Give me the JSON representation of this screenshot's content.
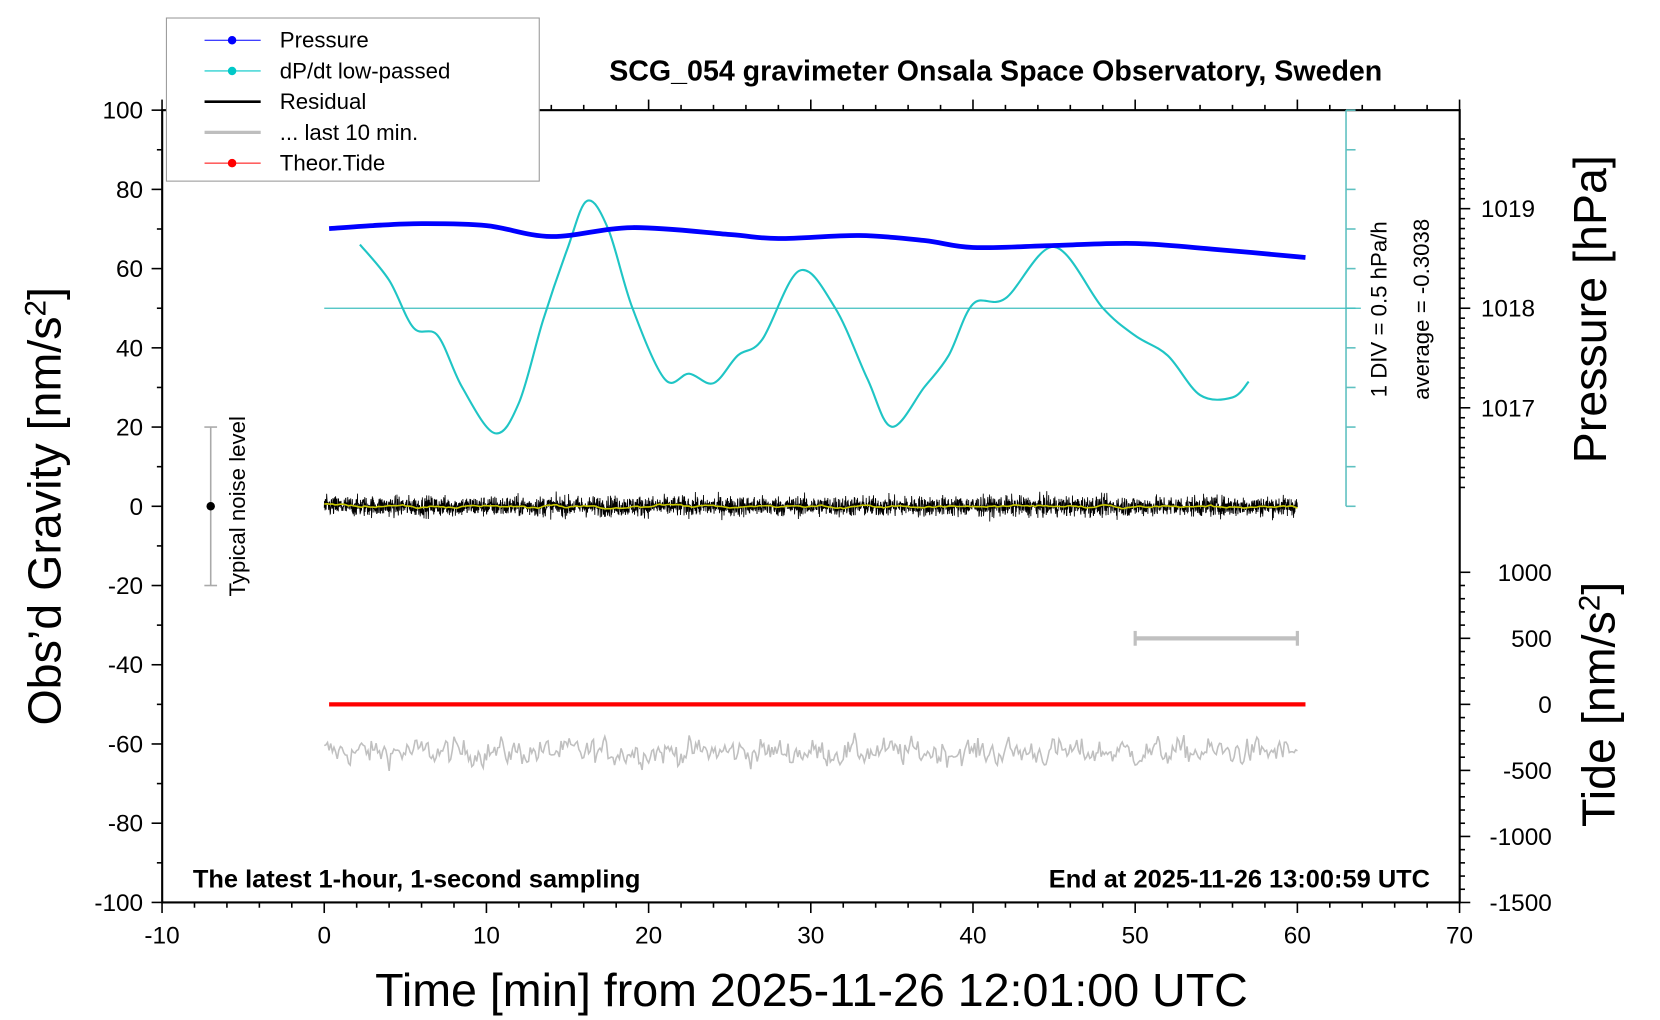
{
  "chart_data": {
    "type": "line",
    "title": "SCG_054 gravimeter Onsala Space Observatory, Sweden",
    "xlabel": "Time [min] from 2025-11-26 12:01:00 UTC",
    "ylabel": "Obs'd Gravity [nm/s²]",
    "ylabel_right_top": "Pressure [hPa]",
    "ylabel_right_bottom": "Tide [nm/s²]",
    "xlim": [
      -10,
      70
    ],
    "ylim": [
      -100,
      100
    ],
    "pressure_lim_ticks": [
      1017,
      1018,
      1019
    ],
    "tide_ticks": [
      1000,
      500,
      0,
      -500,
      -1000,
      -1500
    ],
    "x_ticks": [
      -10,
      0,
      10,
      20,
      30,
      40,
      50,
      60,
      70
    ],
    "y_ticks": [
      100,
      80,
      60,
      40,
      20,
      0,
      -20,
      -40,
      -60,
      -80,
      -100
    ],
    "grid": false,
    "legend_placement": "top-left",
    "legend": [
      {
        "label": "Pressure",
        "color": "#0000ff",
        "marker": true
      },
      {
        "label": "dP/dt low-passed",
        "color": "#00c8c8",
        "marker": true
      },
      {
        "label": "Residual",
        "color": "#000000",
        "marker": false
      },
      {
        "label": "... last 10 min.",
        "color": "#bebebe",
        "marker": false
      },
      {
        "label": "Theor.Tide",
        "color": "#ff0000",
        "marker": true
      }
    ],
    "annotations": {
      "left_bottom": "The latest 1-hour, 1-second sampling",
      "right_bottom": "End at 2025-11-26 13:00:59 UTC",
      "noise": "Typical noise level",
      "dpdt_scale": "1 DIV = 0.5 hPa/h",
      "dpdt_average": "average = -0.3038"
    },
    "noise_level_range": [
      -20,
      20
    ],
    "dpdt_average": -0.3038,
    "dpdt_div": 0.5,
    "series": {
      "pressure": {
        "x": [
          0.3,
          3,
          6,
          10,
          14,
          19,
          25,
          28,
          33,
          37,
          40,
          45,
          50,
          55,
          60.5
        ],
        "y": [
          1018.8,
          1018.83,
          1018.85,
          1018.83,
          1018.72,
          1018.81,
          1018.74,
          1018.7,
          1018.73,
          1018.68,
          1018.61,
          1018.63,
          1018.65,
          1018.59,
          1018.51
        ]
      },
      "dpdt": {
        "x": [
          2.2,
          4,
          5.5,
          7,
          8.5,
          10.5,
          12,
          13.5,
          15,
          16.2,
          17.5,
          19,
          21,
          22.5,
          24,
          25.5,
          27,
          29.3,
          31.5,
          33.5,
          35,
          37,
          38.5,
          40,
          42,
          45,
          48,
          50,
          52,
          54,
          56,
          57
        ],
        "y": [
          0.5,
          0.05,
          -0.55,
          -0.65,
          -1.3,
          -1.88,
          -1.5,
          -0.45,
          0.45,
          1.05,
          0.7,
          -0.3,
          -1.2,
          -1.13,
          -1.25,
          -0.9,
          -0.7,
          0.17,
          -0.3,
          -1.2,
          -1.8,
          -1.3,
          -0.9,
          -0.25,
          -0.18,
          0.47,
          -0.3,
          -0.65,
          -0.9,
          -1.4,
          -1.43,
          -1.23
        ]
      },
      "residual": {
        "x_range": [
          0,
          60
        ],
        "level": 0
      },
      "last10": {
        "x_range": [
          0,
          60
        ],
        "level": -62
      },
      "tide": {
        "x": [
          0.3,
          60.5
        ],
        "y": [
          0,
          0
        ]
      },
      "tide_scalebar": {
        "x": [
          50,
          60
        ],
        "tide": 500
      }
    }
  }
}
